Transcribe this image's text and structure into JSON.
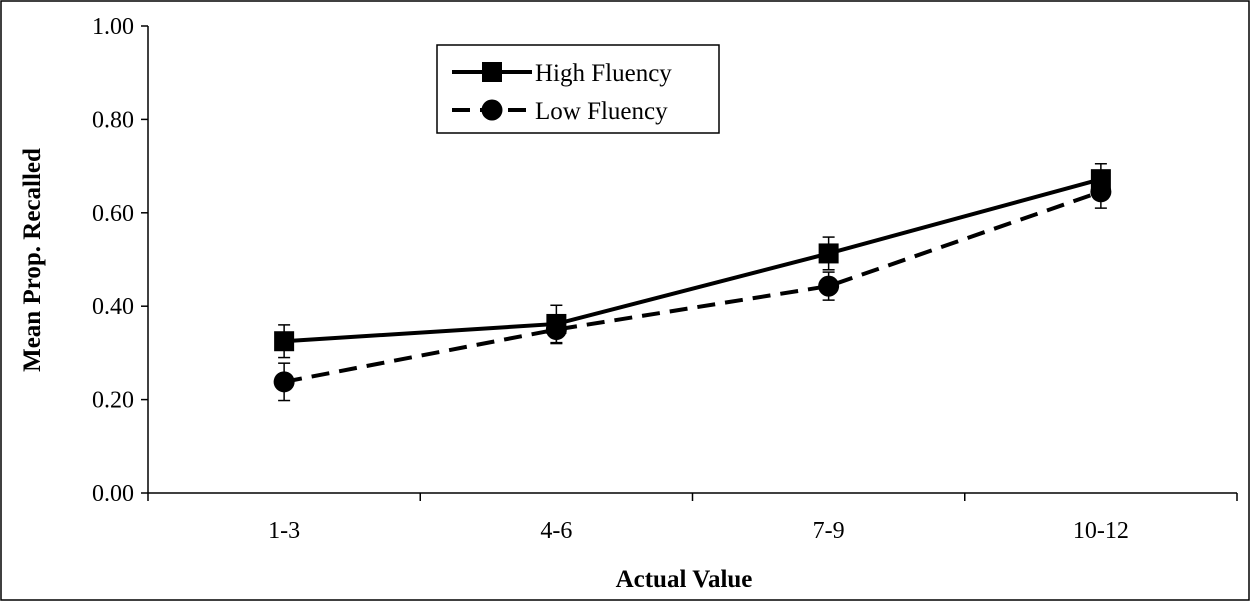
{
  "chart_data": {
    "type": "line",
    "categories": [
      "1-3",
      "4-6",
      "7-9",
      "10-12"
    ],
    "xlabel": "Actual Value",
    "ylabel": "Mean Prop. Recalled",
    "ylim": [
      0,
      1
    ],
    "yticks": [
      "0.00",
      "0.20",
      "0.40",
      "0.60",
      "0.80",
      "1.00"
    ],
    "grid": false,
    "legend_position": "top-left",
    "series": [
      {
        "name": "High Fluency",
        "values": [
          0.325,
          0.362,
          0.513,
          0.672
        ],
        "errors": [
          0.035,
          0.04,
          0.035,
          0.033
        ],
        "line_style": "solid",
        "marker": "square",
        "color": "#000000"
      },
      {
        "name": "Low Fluency",
        "values": [
          0.238,
          0.35,
          0.443,
          0.645
        ],
        "errors": [
          0.04,
          0.03,
          0.03,
          0.035
        ],
        "line_style": "dashed",
        "marker": "circle",
        "color": "#000000"
      }
    ]
  }
}
